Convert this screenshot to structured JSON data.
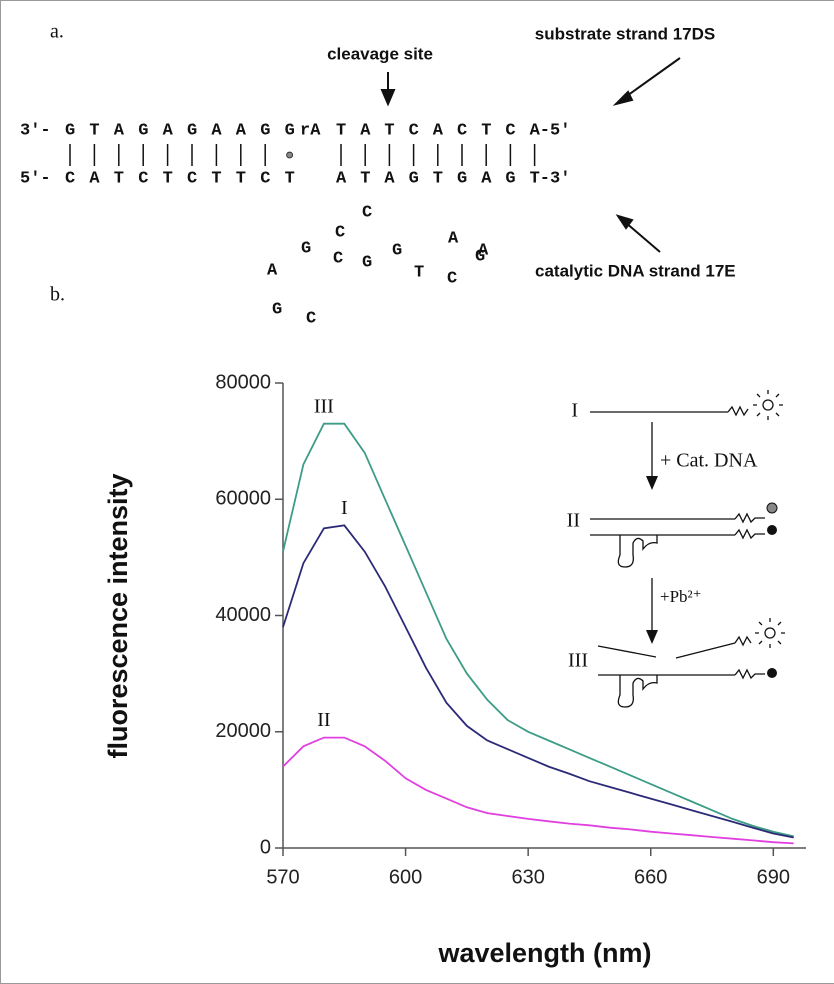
{
  "panel_a": {
    "label": "a.",
    "cleavage_label": "cleavage site",
    "substrate_label": "substrate strand 17DS",
    "catalytic_label": "catalytic DNA strand 17E",
    "top_strand": [
      "3'-",
      "G",
      "T",
      "A",
      "G",
      "A",
      "G",
      "A",
      "A",
      "G",
      "G",
      "rA",
      "T",
      "A",
      "T",
      "C",
      "A",
      "C",
      "T",
      "C",
      "A-5'"
    ],
    "bottom_strand": [
      "5'-",
      "C",
      "A",
      "T",
      "C",
      "T",
      "C",
      "T",
      "T",
      "C",
      "T",
      "A",
      "T",
      "A",
      "G",
      "T",
      "G",
      "A",
      "G",
      "T-3'"
    ],
    "loop": [
      "A",
      "A",
      "G",
      "T",
      "C",
      "G",
      "C",
      "G",
      "C",
      "C",
      "G",
      "A",
      "G",
      "C"
    ]
  },
  "inset": {
    "state_1": "I",
    "state_2": "II",
    "state_3": "III",
    "step_1": "+ Cat. DNA",
    "step_2": "+Pb²⁺"
  },
  "chart_data": {
    "type": "line",
    "panel_label": "b.",
    "x_label": "wavelength (nm)",
    "y_label": "fluorescence intensity",
    "x": [
      570,
      575,
      580,
      585,
      590,
      595,
      600,
      605,
      610,
      615,
      620,
      625,
      630,
      635,
      640,
      645,
      650,
      655,
      660,
      665,
      670,
      675,
      680,
      685,
      690,
      695
    ],
    "series": [
      {
        "name": "III",
        "color": "#3c9c86",
        "values": [
          51000,
          66000,
          73000,
          73000,
          68000,
          60000,
          52000,
          44000,
          36000,
          30000,
          25500,
          22000,
          20000,
          18500,
          17000,
          15500,
          14000,
          12500,
          11000,
          9500,
          8000,
          6500,
          5000,
          3800,
          2800,
          2000
        ]
      },
      {
        "name": "I",
        "color": "#2c2a78",
        "values": [
          38000,
          49000,
          55000,
          55500,
          51000,
          45000,
          38000,
          31000,
          25000,
          21000,
          18500,
          17000,
          15500,
          14000,
          12800,
          11500,
          10500,
          9500,
          8500,
          7500,
          6500,
          5500,
          4500,
          3500,
          2500,
          1800
        ]
      },
      {
        "name": "II",
        "color": "#e040e0",
        "values": [
          14000,
          17500,
          19000,
          19000,
          17500,
          15000,
          12000,
          10000,
          8500,
          7000,
          6000,
          5500,
          5000,
          4600,
          4200,
          3900,
          3500,
          3200,
          2800,
          2500,
          2200,
          1900,
          1600,
          1300,
          1000,
          800
        ]
      }
    ],
    "xlim": [
      570,
      698
    ],
    "ylim": [
      0,
      80000
    ],
    "xticks": [
      570,
      600,
      630,
      660,
      690
    ],
    "yticks": [
      0,
      20000,
      40000,
      60000,
      80000
    ]
  }
}
